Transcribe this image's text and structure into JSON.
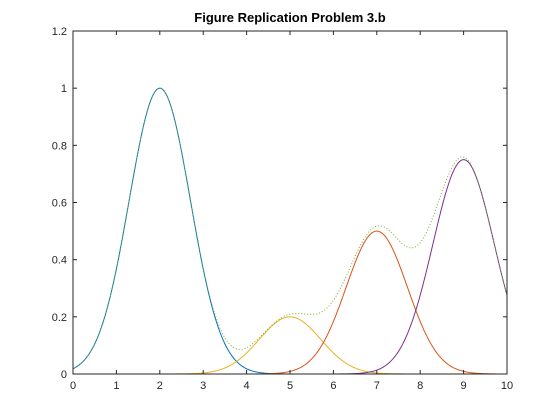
{
  "chart_data": {
    "type": "line",
    "title": "Figure Replication Problem 3.b",
    "xlabel": "",
    "ylabel": "",
    "xlim": [
      0,
      10
    ],
    "ylim": [
      0,
      1.2
    ],
    "xticks": [
      0,
      1,
      2,
      3,
      4,
      5,
      6,
      7,
      8,
      9,
      10
    ],
    "yticks": [
      0,
      0.2,
      0.4,
      0.6,
      0.8,
      1,
      1.2
    ],
    "xtick_labels": [
      "0",
      "1",
      "2",
      "3",
      "4",
      "5",
      "6",
      "7",
      "8",
      "9",
      "10"
    ],
    "ytick_labels": [
      "0",
      "0.2",
      "0.4",
      "0.6",
      "0.8",
      "1",
      "1.2"
    ],
    "grid": false,
    "series": [
      {
        "color": "#0072BD",
        "style": "solid",
        "function": "gaussian",
        "amplitude": 1.0,
        "center": 2,
        "sigma": 0.707
      },
      {
        "color": "#EDB120",
        "style": "solid",
        "function": "gaussian",
        "amplitude": 0.2,
        "center": 5,
        "sigma": 0.707
      },
      {
        "color": "#D95319",
        "style": "solid",
        "function": "gaussian",
        "amplitude": 0.5,
        "center": 7,
        "sigma": 0.707
      },
      {
        "color": "#7E2F8E",
        "style": "solid",
        "function": "gaussian",
        "amplitude": 0.75,
        "center": 9,
        "sigma": 0.707
      },
      {
        "color": "#77AC30",
        "style": "dotted",
        "function": "sum"
      }
    ]
  }
}
